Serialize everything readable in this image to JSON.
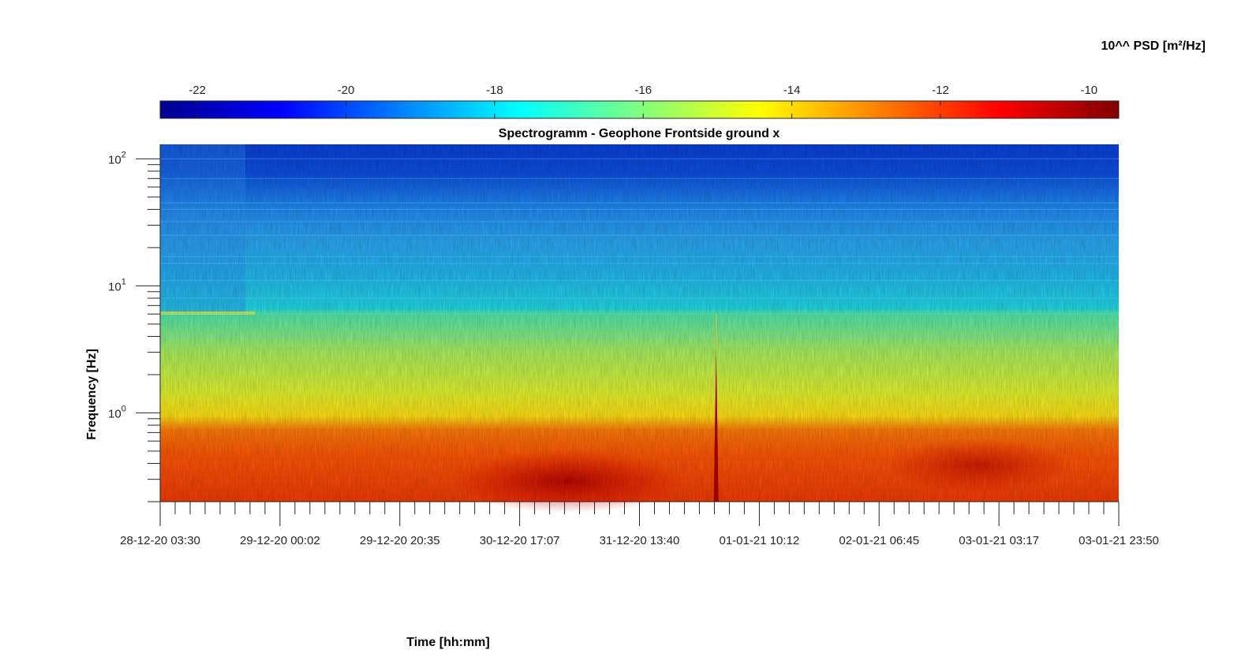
{
  "colorbar": {
    "label": "10^^ PSD [m²/Hz]",
    "tick_labels": [
      "-22",
      "-20",
      "-18",
      "-16",
      "-14",
      "-12",
      "-10"
    ],
    "colormap": "jet",
    "range": [
      -22.5,
      -9.6
    ]
  },
  "chart_data": {
    "type": "heatmap",
    "title": "Spectrogramm - Geophone Frontside ground x",
    "xlabel": "Time [hh:mm]",
    "ylabel": "Frequency [Hz]",
    "yscale": "log",
    "ylim": [
      0.2,
      130
    ],
    "xlim": [
      "28-12-20 03:30",
      "03-01-21 23:50"
    ],
    "x_tick_labels": [
      "28-12-20 03:30",
      "29-12-20 00:02",
      "29-12-20 20:35",
      "30-12-20 17:07",
      "31-12-20 13:40",
      "01-01-21 10:12",
      "02-01-21 06:45",
      "03-01-21 03:17",
      "03-01-21 23:50"
    ],
    "y_tick_labels": [
      {
        "base": "10",
        "exp": "2",
        "value": 100
      },
      {
        "base": "10",
        "exp": "1",
        "value": 10
      },
      {
        "base": "10",
        "exp": "0",
        "value": 1
      }
    ],
    "frequency_profile": [
      {
        "freq": 0.2,
        "log10_psd": -11.8
      },
      {
        "freq": 0.5,
        "log10_psd": -12.2
      },
      {
        "freq": 0.7,
        "log10_psd": -13.0
      },
      {
        "freq": 0.9,
        "log10_psd": -14.4
      },
      {
        "freq": 1.5,
        "log10_psd": -14.8
      },
      {
        "freq": 4.0,
        "log10_psd": -15.6
      },
      {
        "freq": 6.0,
        "log10_psd": -16.5
      },
      {
        "freq": 10,
        "log10_psd": -17.9
      },
      {
        "freq": 30,
        "log10_psd": -18.5
      },
      {
        "freq": 60,
        "log10_psd": -19.8
      },
      {
        "freq": 130,
        "log10_psd": -21.0
      }
    ],
    "events": [
      {
        "time_fraction": 0.58,
        "note": "broadband spike"
      }
    ]
  }
}
